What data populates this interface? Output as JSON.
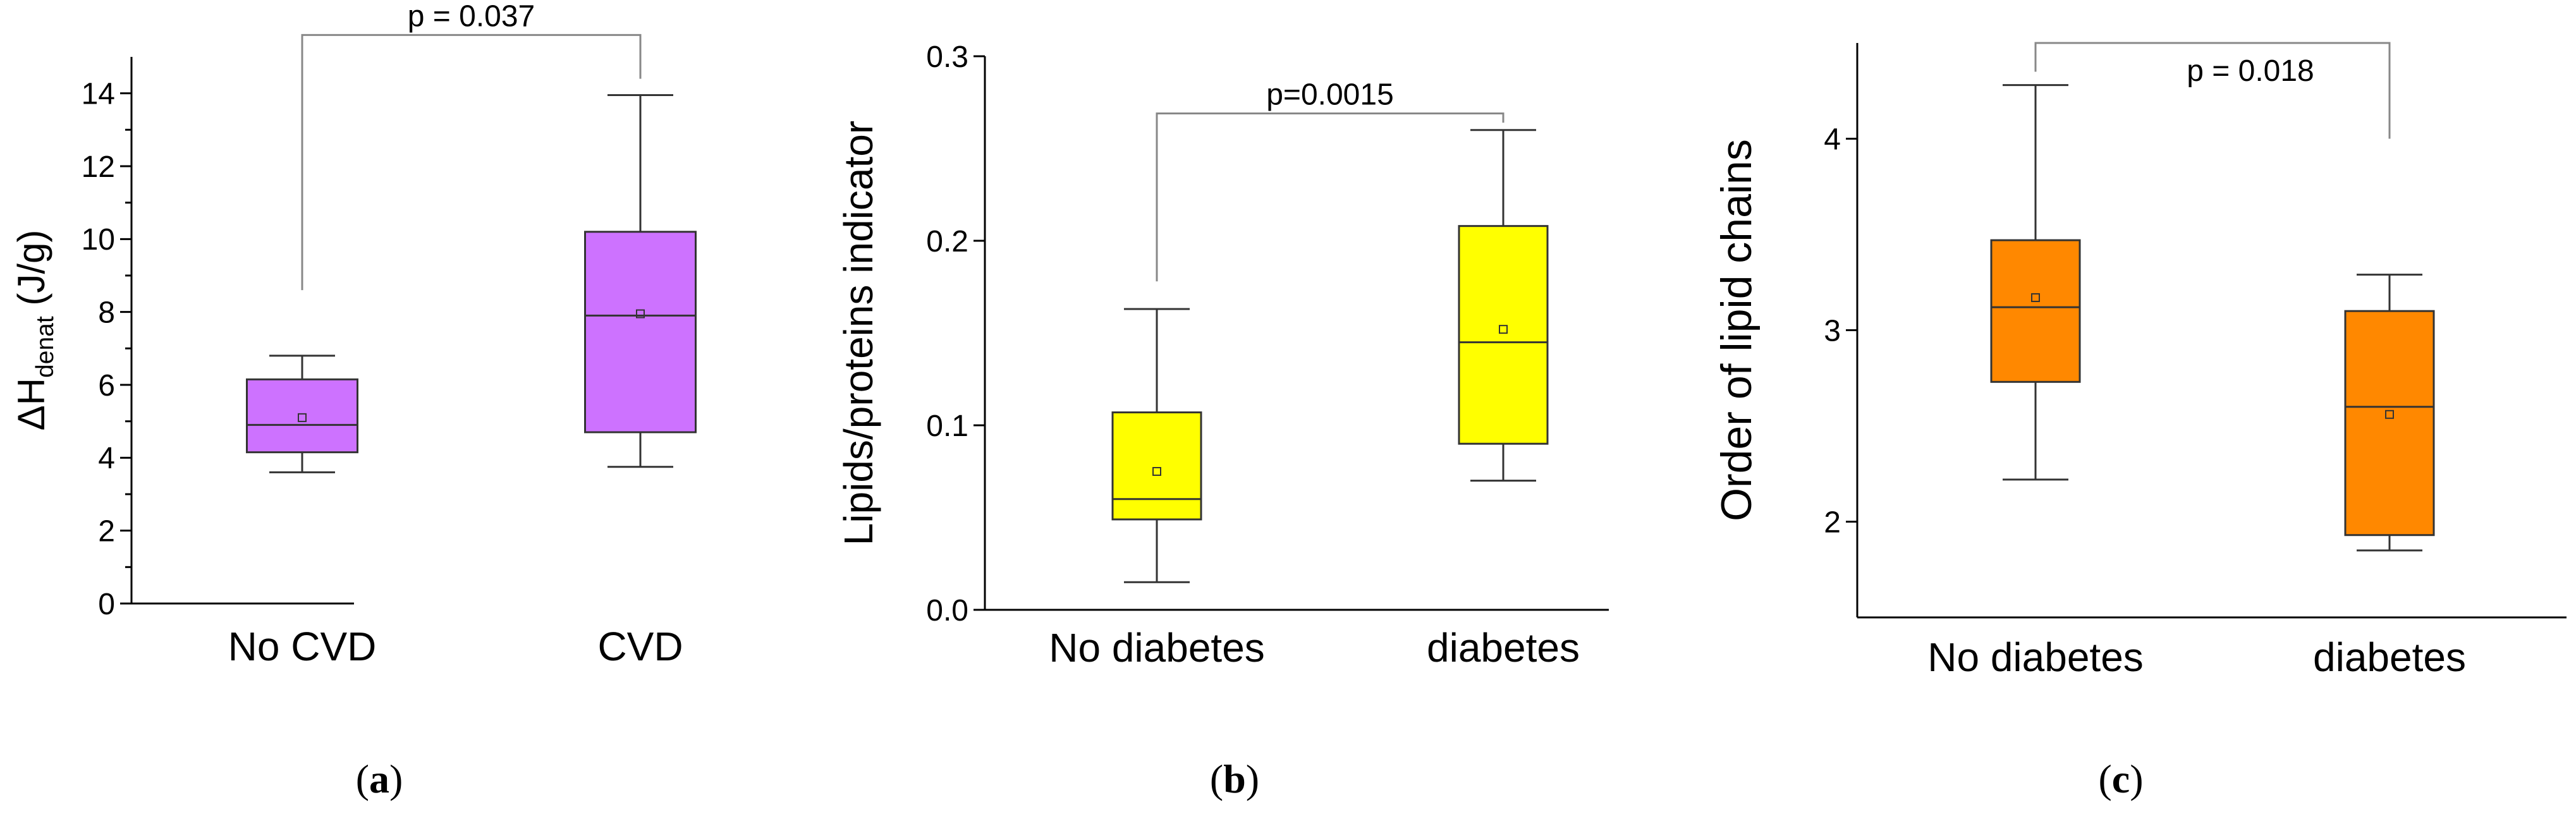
{
  "chart_data": [
    {
      "type": "box",
      "panel": "a",
      "ylabel_main": "ΔH",
      "ylabel_sub": "denat",
      "ylabel_unit": " (J/g)",
      "ylim": [
        0,
        15
      ],
      "yticks": [
        0,
        2,
        4,
        6,
        8,
        10,
        12,
        14
      ],
      "ytick_labels": [
        "0",
        "2",
        "4",
        "6",
        "8",
        "10",
        "12",
        "14"
      ],
      "minor_ticks": true,
      "categories": [
        "No CVD",
        "CVD"
      ],
      "fill_color": "#cd72ff",
      "boxes": [
        {
          "whisker_low": 3.6,
          "q1": 4.15,
          "median": 4.9,
          "q3": 6.15,
          "whisker_high": 6.8,
          "mean": 5.1
        },
        {
          "whisker_low": 3.75,
          "q1": 4.7,
          "median": 7.9,
          "q3": 10.2,
          "whisker_high": 13.95,
          "mean": 7.95
        }
      ],
      "significance": {
        "label": "p = 0.037",
        "left_end": 8.6,
        "right_end": 14.4,
        "bar_level": 15.6
      }
    },
    {
      "type": "box",
      "panel": "b",
      "ylabel_main": "Lipids/proteins indicator",
      "ylabel_sub": "",
      "ylabel_unit": "",
      "ylim": [
        0,
        0.3
      ],
      "yticks": [
        0,
        0.1,
        0.2,
        0.3
      ],
      "ytick_labels": [
        "0.0",
        "0.1",
        "0.2",
        "0.3"
      ],
      "minor_ticks": false,
      "categories": [
        "No diabetes",
        "diabetes"
      ],
      "fill_color": "#ffff00",
      "boxes": [
        {
          "whisker_low": 0.015,
          "q1": 0.049,
          "median": 0.06,
          "q3": 0.107,
          "whisker_high": 0.163,
          "mean": 0.075
        },
        {
          "whisker_low": 0.07,
          "q1": 0.09,
          "median": 0.145,
          "q3": 0.208,
          "whisker_high": 0.26,
          "mean": 0.152
        }
      ],
      "significance": {
        "label": "p=0.0015",
        "left_end": 0.178,
        "right_end": 0.264,
        "bar_level": 0.269
      }
    },
    {
      "type": "box",
      "panel": "c",
      "ylabel_main": "Order of lipid chains",
      "ylabel_sub": "",
      "ylabel_unit": "",
      "ylim": [
        1.5,
        4.5
      ],
      "yticks": [
        2,
        3,
        4
      ],
      "ytick_labels": [
        "2",
        "3",
        "4"
      ],
      "minor_ticks": false,
      "categories": [
        "No diabetes",
        "diabetes"
      ],
      "fill_color": "#ff8800",
      "boxes": [
        {
          "whisker_low": 2.22,
          "q1": 2.73,
          "median": 3.12,
          "q3": 3.47,
          "whisker_high": 4.28,
          "mean": 3.17
        },
        {
          "whisker_low": 1.85,
          "q1": 1.93,
          "median": 2.6,
          "q3": 3.1,
          "whisker_high": 3.29,
          "mean": 2.56
        }
      ],
      "significance": {
        "label": "p = 0.018",
        "left_end": 4.35,
        "right_end": 4.0,
        "bar_level": 4.5
      }
    }
  ],
  "panel_labels": [
    "a",
    "b",
    "c"
  ]
}
